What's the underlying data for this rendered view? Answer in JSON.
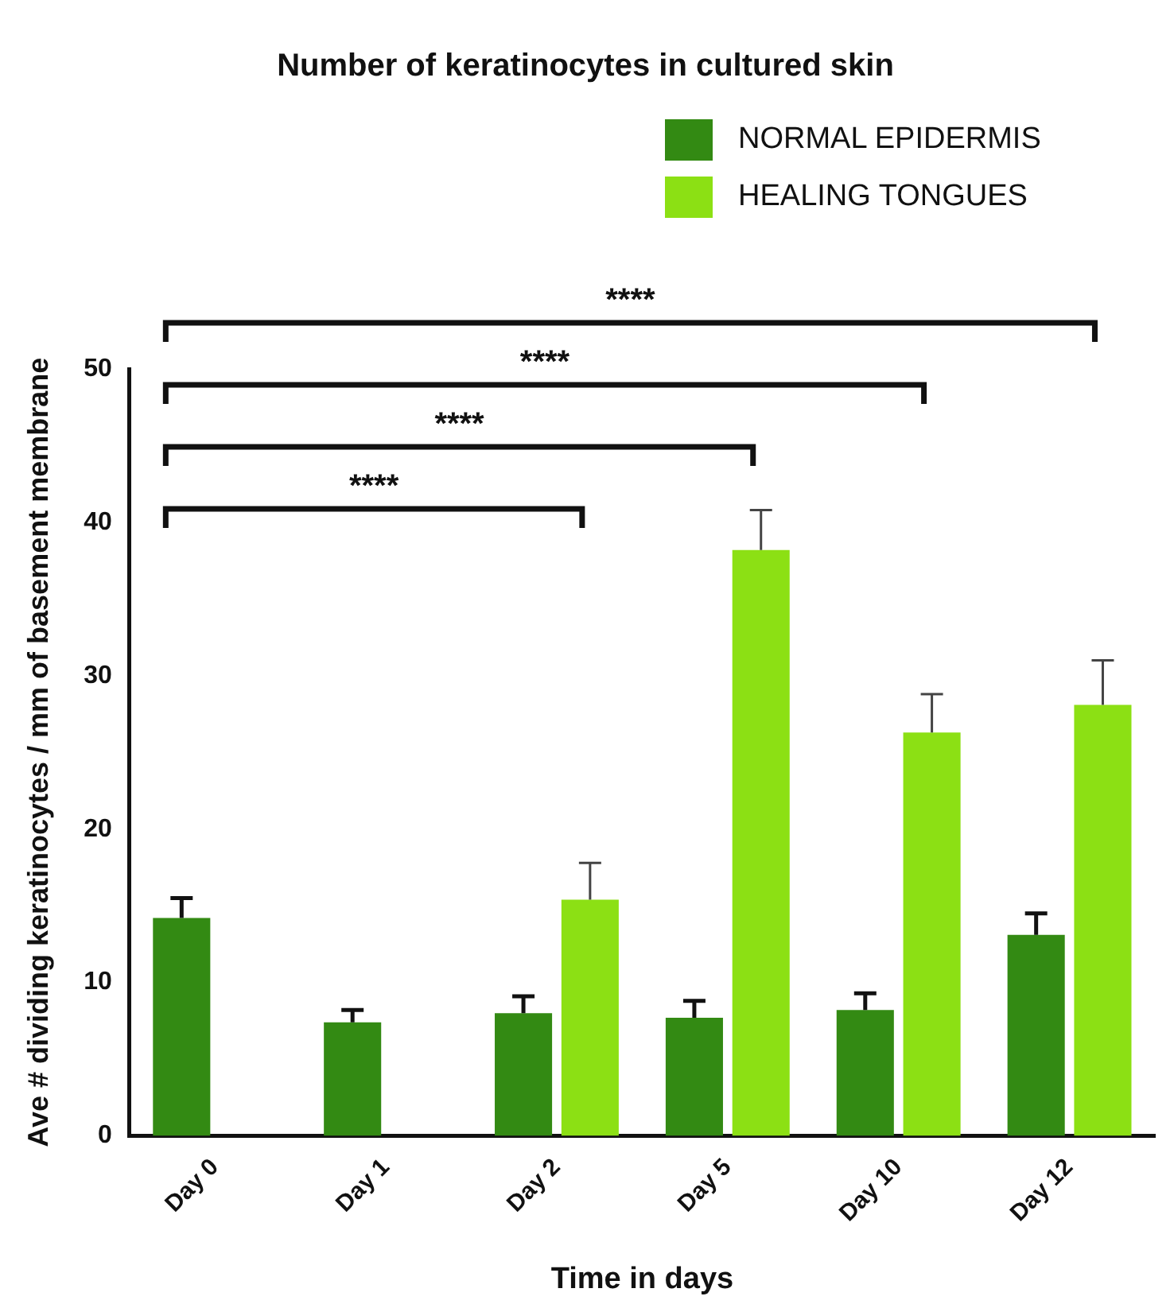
{
  "chart_data": {
    "type": "bar",
    "title": "Number of keratinocytes in cultured skin",
    "xlabel": "Time in days",
    "ylabel": "Ave # dividing keratinocytes / mm of basement membrane",
    "categories": [
      "Day 0",
      "Day 1",
      "Day 2",
      "Day 5",
      "Day 10",
      "Day 12"
    ],
    "series": [
      {
        "name": "NORMAL EPIDERMIS",
        "color": "#338a13",
        "values": [
          14.2,
          7.4,
          8.0,
          7.7,
          8.2,
          13.1
        ],
        "errors": [
          [
            14.2,
            15.5
          ],
          [
            7.4,
            8.2
          ],
          [
            8.0,
            9.1
          ],
          [
            7.7,
            8.8
          ],
          [
            8.2,
            9.3
          ],
          [
            13.1,
            14.5
          ]
        ]
      },
      {
        "name": "HEALING TONGUES",
        "color": "#8ce014",
        "values": [
          null,
          null,
          15.4,
          38.2,
          26.3,
          28.1
        ],
        "errors": [
          null,
          null,
          [
            15.4,
            17.8
          ],
          [
            38.2,
            40.8
          ],
          [
            26.3,
            28.8
          ],
          [
            28.1,
            31.0
          ]
        ]
      }
    ],
    "ylim": [
      0,
      50
    ],
    "yticks": [
      0,
      10,
      20,
      30,
      40,
      50
    ],
    "grid": false,
    "legend": "top right",
    "annotations": [
      "****",
      "****",
      "****",
      "****"
    ]
  }
}
